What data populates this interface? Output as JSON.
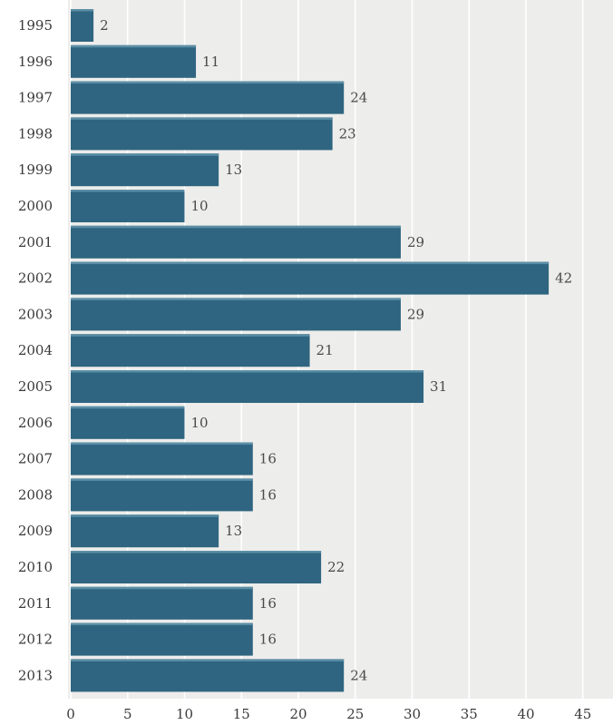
{
  "chart_data": {
    "type": "bar",
    "orientation": "horizontal",
    "categories": [
      "1995",
      "1996",
      "1997",
      "1998",
      "1999",
      "2000",
      "2001",
      "2002",
      "2003",
      "2004",
      "2005",
      "2006",
      "2007",
      "2008",
      "2009",
      "2010",
      "2011",
      "2012",
      "2013"
    ],
    "values": [
      2,
      11,
      24,
      23,
      13,
      10,
      29,
      42,
      29,
      21,
      31,
      10,
      16,
      16,
      13,
      22,
      16,
      16,
      24
    ],
    "xticks": [
      "0",
      "5",
      "10",
      "15",
      "20",
      "25",
      "30",
      "35",
      "40",
      "45"
    ],
    "xlim": [
      0,
      47
    ],
    "grid": "vertical",
    "legend": "none",
    "title": "",
    "xlabel": "",
    "ylabel": "",
    "colors": {
      "bar": "#2f6580",
      "bar_highlight": "#5b8ea6",
      "plot_background": "#ededeb",
      "gridline": "#ffffff",
      "text": "#3a3a3a"
    }
  }
}
